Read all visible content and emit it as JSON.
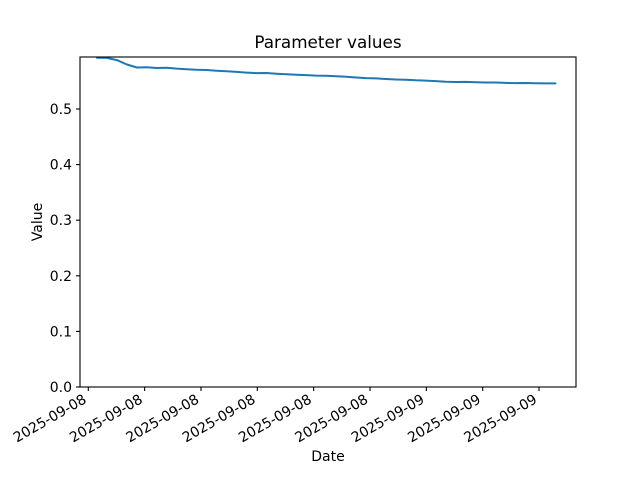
{
  "chart_data": {
    "type": "line",
    "title": "Parameter values",
    "xlabel": "Date",
    "ylabel": "Value",
    "x_tick_labels": [
      "2025-09-08",
      "2025-09-08",
      "2025-09-08",
      "2025-09-08",
      "2025-09-08",
      "2025-09-08",
      "2025-09-09",
      "2025-09-09",
      "2025-09-09"
    ],
    "y_ticks": [
      0.0,
      0.1,
      0.2,
      0.3,
      0.4,
      0.5
    ],
    "y_tick_labels": [
      "0.0",
      "0.1",
      "0.2",
      "0.3",
      "0.4",
      "0.5"
    ],
    "ylim": [
      0,
      0.5935
    ],
    "grid": false,
    "legend": false,
    "x_tick_rotation_deg": 30,
    "series": [
      {
        "name": "parameter-values",
        "color": "#1f77b4",
        "x_frac": [
          0,
          0.0217,
          0.0435,
          0.0652,
          0.087,
          0.1087,
          0.1304,
          0.1522,
          0.1739,
          0.1957,
          0.2174,
          0.2391,
          0.2609,
          0.2826,
          0.3043,
          0.3261,
          0.3478,
          0.3696,
          0.3913,
          0.413,
          0.4348,
          0.4565,
          0.4783,
          0.5,
          0.5217,
          0.5435,
          0.5652,
          0.587,
          0.6087,
          0.6304,
          0.6522,
          0.6739,
          0.6957,
          0.7174,
          0.7391,
          0.7609,
          0.7826,
          0.8043,
          0.8261,
          0.8478,
          0.8696,
          0.8913,
          0.913,
          0.9348,
          0.9565,
          0.9783,
          1
        ],
        "values": [
          0.592,
          0.5918,
          0.588,
          0.58,
          0.5747,
          0.5749,
          0.5737,
          0.5742,
          0.5726,
          0.5716,
          0.5705,
          0.5701,
          0.5688,
          0.568,
          0.5667,
          0.5655,
          0.5646,
          0.5647,
          0.5635,
          0.5624,
          0.5617,
          0.561,
          0.5601,
          0.5597,
          0.5589,
          0.5581,
          0.5566,
          0.5556,
          0.5551,
          0.554,
          0.5531,
          0.5526,
          0.5516,
          0.5511,
          0.5501,
          0.5491,
          0.5486,
          0.5487,
          0.5481,
          0.5476,
          0.5477,
          0.547,
          0.5466,
          0.5467,
          0.5464,
          0.5461,
          0.5461
        ]
      }
    ]
  },
  "colors": {
    "line": "#1f77b4",
    "axis": "#000000",
    "text": "#000000",
    "background": "#ffffff"
  }
}
